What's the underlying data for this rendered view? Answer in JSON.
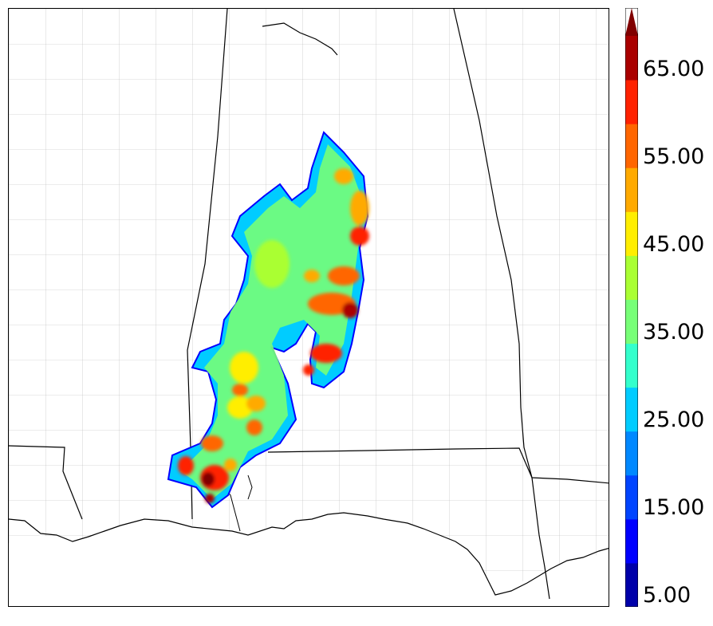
{
  "map": {
    "title": "",
    "colors": {
      "state_border": "#000000",
      "county_border": "#9a9a9a",
      "coast": "#000000"
    }
  },
  "colorbar": {
    "levels": [
      5,
      10,
      15,
      20,
      25,
      30,
      35,
      40,
      45,
      50,
      55,
      60,
      65,
      70
    ],
    "colors": [
      "#0000aa",
      "#0000ff",
      "#0044ff",
      "#0088ff",
      "#00ccff",
      "#33ffcc",
      "#77ff77",
      "#aaff33",
      "#ffee00",
      "#ffaa00",
      "#ff6600",
      "#ff2200",
      "#aa0000",
      "#800000"
    ],
    "extend": "max",
    "tick_labels": [
      "5.00",
      "15.00",
      "25.00",
      "35.00",
      "45.00",
      "55.00",
      "65.00"
    ]
  }
}
